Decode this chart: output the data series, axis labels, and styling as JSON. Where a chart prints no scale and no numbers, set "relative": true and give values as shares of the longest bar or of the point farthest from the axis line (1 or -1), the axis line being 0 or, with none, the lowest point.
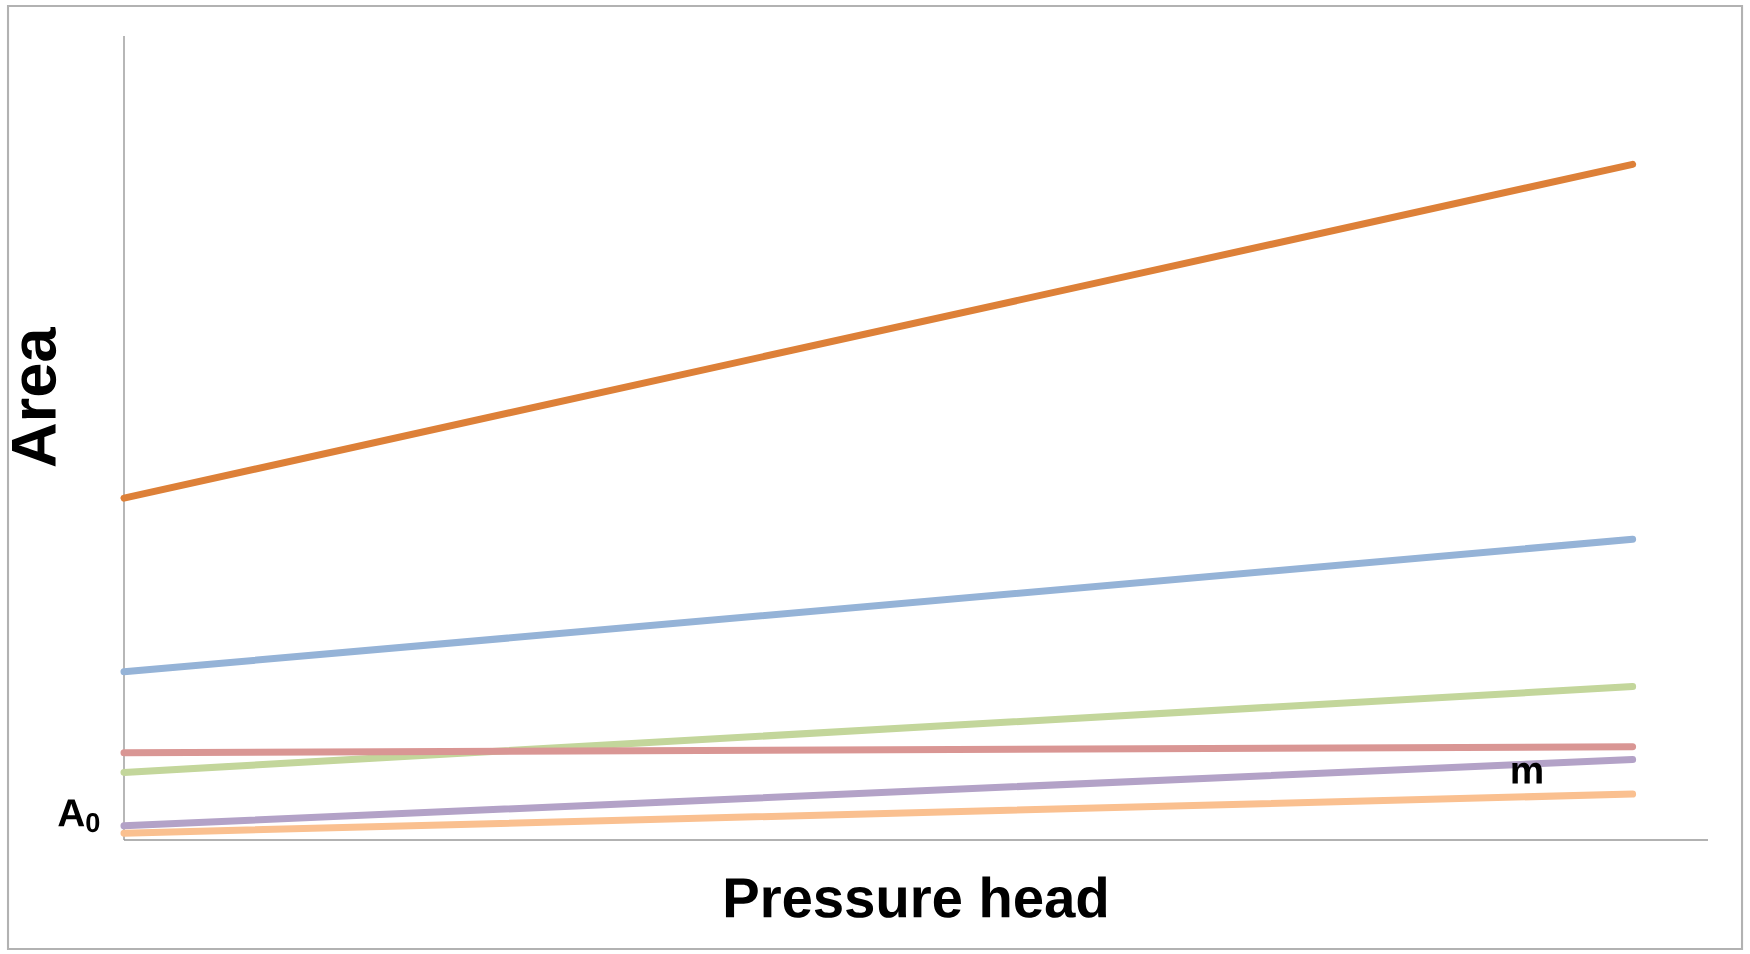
{
  "chart_data": {
    "type": "line",
    "relative": true,
    "xlabel": "Pressure head",
    "ylabel": "Area",
    "categories": [
      null,
      null
    ],
    "series": [
      {
        "color": "#dd8038",
        "values": [
          0.506,
          1
        ]
      },
      {
        "color": "#95b3d7",
        "values": [
          0.249,
          0.445
        ]
      },
      {
        "color": "#c3d69b",
        "values": [
          0.1,
          0.227
        ]
      },
      {
        "color": "#d99694",
        "values": [
          0.129,
          0.138
        ]
      },
      {
        "color": "#b3a2c7",
        "values": [
          0.021,
          0.119
        ]
      },
      {
        "color": "#fac090",
        "values": [
          0.01,
          0.068
        ]
      }
    ],
    "annotations": [
      "A$_{0}$",
      "m"
    ]
  }
}
